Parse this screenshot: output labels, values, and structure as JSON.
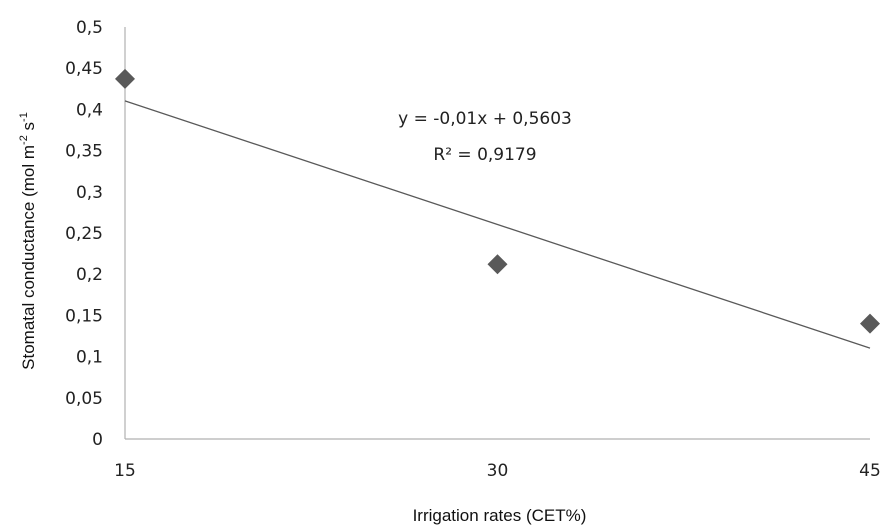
{
  "chart_data": {
    "type": "scatter",
    "title": "",
    "xlabel": "Irrigation rates (CET%)",
    "ylabel": {
      "main": "Stomatal conductance (mol m",
      "exp1": "-2",
      "mid": " s",
      "exp2": "-1"
    },
    "x_ticks": [
      "15",
      "30",
      "45"
    ],
    "x_tick_values": [
      15,
      30,
      45
    ],
    "y_ticks": [
      "0",
      "0,05",
      "0,1",
      "0,15",
      "0,2",
      "0,25",
      "0,3",
      "0,35",
      "0,4",
      "0,45",
      "0,5"
    ],
    "ylim": [
      0,
      0.5
    ],
    "xlim": [
      15,
      45
    ],
    "series": [
      {
        "marker": "diamond",
        "color": "#595959",
        "points": [
          {
            "x": 15,
            "y": 0.437
          },
          {
            "x": 30,
            "y": 0.212
          },
          {
            "x": 45,
            "y": 0.14
          }
        ]
      }
    ],
    "trendline": {
      "slope": -0.01,
      "intercept": 0.5603,
      "x_range": [
        15,
        45
      ],
      "color": "#595959",
      "equation": "y = -0,01x + 0,5603",
      "r2": "R² = 0,9179"
    },
    "grid": false,
    "legend": "none"
  }
}
